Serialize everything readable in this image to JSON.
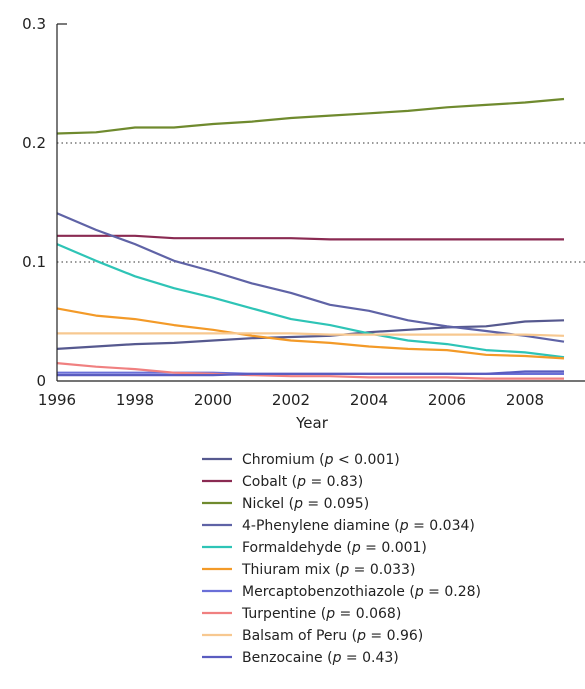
{
  "chart_data": {
    "type": "line",
    "xlabel": "Year",
    "ylabel": "",
    "xlim": [
      1996,
      2009
    ],
    "ylim": [
      0,
      0.3
    ],
    "x_ticks": [
      "1996",
      "1998",
      "2000",
      "2002",
      "2004",
      "2006",
      "2008"
    ],
    "y_ticks": [
      "0",
      "0.1",
      "0.2",
      "0.3"
    ],
    "grid": "dotted horizontal at 0.1 and 0.2",
    "legend_position": "bottom",
    "x": [
      1996,
      1997,
      1998,
      1999,
      2000,
      2001,
      2002,
      2003,
      2004,
      2005,
      2006,
      2007,
      2008,
      2009
    ],
    "series": [
      {
        "name": "Chromium",
        "p_value": "0.001",
        "p_op": "<",
        "color": "#56598f",
        "values": [
          0.027,
          0.029,
          0.031,
          0.032,
          0.034,
          0.036,
          0.037,
          0.038,
          0.041,
          0.043,
          0.045,
          0.046,
          0.05,
          0.051
        ]
      },
      {
        "name": "Cobalt",
        "p_value": "0.83",
        "p_op": "=",
        "color": "#8a2a52",
        "values": [
          0.122,
          0.122,
          0.122,
          0.12,
          0.12,
          0.12,
          0.12,
          0.119,
          0.119,
          0.119,
          0.119,
          0.119,
          0.119,
          0.119
        ]
      },
      {
        "name": "Nickel",
        "p_value": "0.095",
        "p_op": "=",
        "color": "#6f8a2e",
        "values": [
          0.208,
          0.209,
          0.213,
          0.213,
          0.216,
          0.218,
          0.221,
          0.223,
          0.225,
          0.227,
          0.23,
          0.232,
          0.234,
          0.237
        ]
      },
      {
        "name": "4-Phenylene diamine",
        "p_value": "0.034",
        "p_op": "=",
        "color": "#5f63a6",
        "values": [
          0.141,
          0.127,
          0.115,
          0.101,
          0.092,
          0.082,
          0.074,
          0.064,
          0.059,
          0.051,
          0.046,
          0.042,
          0.038,
          0.033
        ]
      },
      {
        "name": "Formaldehyde",
        "p_value": "0.001",
        "p_op": "=",
        "color": "#2ec4b6",
        "values": [
          0.115,
          0.101,
          0.088,
          0.078,
          0.07,
          0.061,
          0.052,
          0.047,
          0.04,
          0.034,
          0.031,
          0.026,
          0.024,
          0.02
        ]
      },
      {
        "name": "Thiuram mix",
        "p_value": "0.033",
        "p_op": "=",
        "color": "#f39a28",
        "values": [
          0.061,
          0.055,
          0.052,
          0.047,
          0.043,
          0.038,
          0.034,
          0.032,
          0.029,
          0.027,
          0.026,
          0.022,
          0.021,
          0.019
        ]
      },
      {
        "name": "Mercaptobenzothiazole",
        "p_value": "0.28",
        "p_op": "=",
        "color": "#6a6fd8",
        "values": [
          0.007,
          0.007,
          0.007,
          0.007,
          0.007,
          0.006,
          0.006,
          0.006,
          0.006,
          0.006,
          0.006,
          0.006,
          0.006,
          0.006
        ]
      },
      {
        "name": "Turpentine",
        "p_value": "0.068",
        "p_op": "=",
        "color": "#f08080",
        "values": [
          0.015,
          0.012,
          0.01,
          0.007,
          0.006,
          0.005,
          0.004,
          0.004,
          0.003,
          0.003,
          0.003,
          0.002,
          0.002,
          0.002
        ]
      },
      {
        "name": "Balsam of Peru",
        "p_value": "0.96",
        "p_op": "=",
        "color": "#f7c890",
        "values": [
          0.04,
          0.04,
          0.04,
          0.04,
          0.04,
          0.04,
          0.04,
          0.039,
          0.039,
          0.039,
          0.039,
          0.039,
          0.039,
          0.038
        ]
      },
      {
        "name": "Benzocaine",
        "p_value": "0.43",
        "p_op": "=",
        "color": "#5a5cc0",
        "values": [
          0.005,
          0.005,
          0.005,
          0.005,
          0.005,
          0.006,
          0.006,
          0.006,
          0.006,
          0.006,
          0.006,
          0.006,
          0.008,
          0.008
        ]
      }
    ]
  }
}
